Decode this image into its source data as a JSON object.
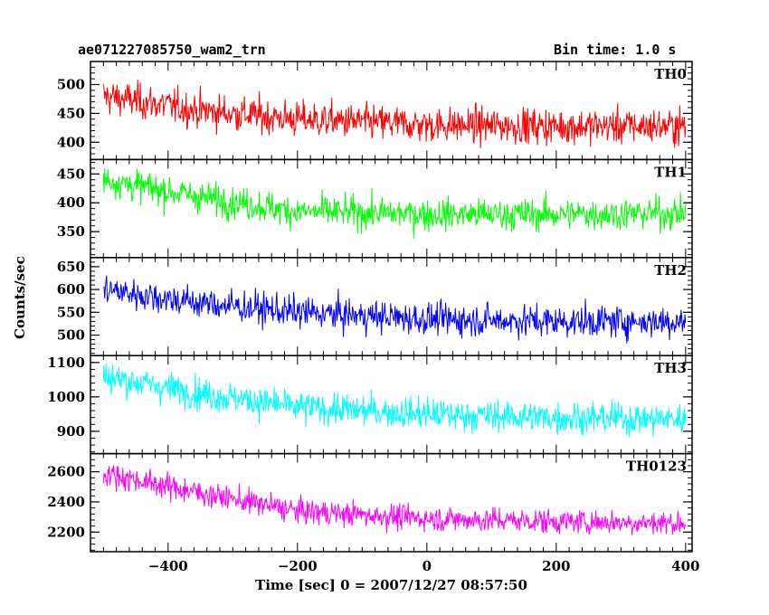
{
  "header": {
    "title": "ae071227085750_wam2_trn",
    "bin_time": "Bin time: 1.0 s"
  },
  "colors": {
    "TH0": "#ff0000",
    "TH1": "#00ff00",
    "TH2": "#0000ff",
    "TH3": "#00ffff",
    "TH0123": "#ff00ff"
  },
  "chart_data": {
    "type": "line",
    "xlabel": "Time [sec] 0 = 2007/12/27 08:57:50",
    "ylabel": "Counts/sec",
    "xlim": [
      -520,
      410
    ],
    "xticks": [
      -400,
      -200,
      0,
      200,
      400
    ],
    "x_range": [
      -500,
      400
    ],
    "x_step": 1.0,
    "grid": false,
    "panels": [
      {
        "name": "TH0",
        "color": "#ff0000",
        "ylim": [
          370,
          540
        ],
        "yticks": [
          400,
          450,
          500
        ],
        "trend": [
          [
            -500,
            480
          ],
          [
            -350,
            455
          ],
          [
            -200,
            440
          ],
          [
            0,
            430
          ],
          [
            200,
            428
          ],
          [
            400,
            428
          ]
        ],
        "noise_sd": 28
      },
      {
        "name": "TH1",
        "color": "#00ff00",
        "ylim": [
          305,
          475
        ],
        "yticks": [
          350,
          400,
          450
        ],
        "trend": [
          [
            -500,
            440
          ],
          [
            -350,
            410
          ],
          [
            -200,
            385
          ],
          [
            0,
            380
          ],
          [
            200,
            380
          ],
          [
            400,
            382
          ]
        ],
        "noise_sd": 25
      },
      {
        "name": "TH2",
        "color": "#0000ff",
        "ylim": [
          455,
          670
        ],
        "yticks": [
          500,
          550,
          600,
          650
        ],
        "trend": [
          [
            -500,
            600
          ],
          [
            -350,
            570
          ],
          [
            -200,
            550
          ],
          [
            0,
            535
          ],
          [
            200,
            530
          ],
          [
            400,
            530
          ]
        ],
        "noise_sd": 32
      },
      {
        "name": "TH3",
        "color": "#00ffff",
        "ylim": [
          835,
          1120
        ],
        "yticks": [
          900,
          1000,
          1100
        ],
        "trend": [
          [
            -500,
            1060
          ],
          [
            -350,
            1010
          ],
          [
            -200,
            970
          ],
          [
            0,
            950
          ],
          [
            200,
            940
          ],
          [
            400,
            935
          ]
        ],
        "noise_sd": 42
      },
      {
        "name": "TH0123",
        "color": "#ff00ff",
        "ylim": [
          2070,
          2720
        ],
        "yticks": [
          2200,
          2400,
          2600
        ],
        "trend": [
          [
            -500,
            2590
          ],
          [
            -350,
            2460
          ],
          [
            -200,
            2340
          ],
          [
            0,
            2290
          ],
          [
            200,
            2270
          ],
          [
            400,
            2260
          ]
        ],
        "noise_sd": 75
      }
    ]
  }
}
